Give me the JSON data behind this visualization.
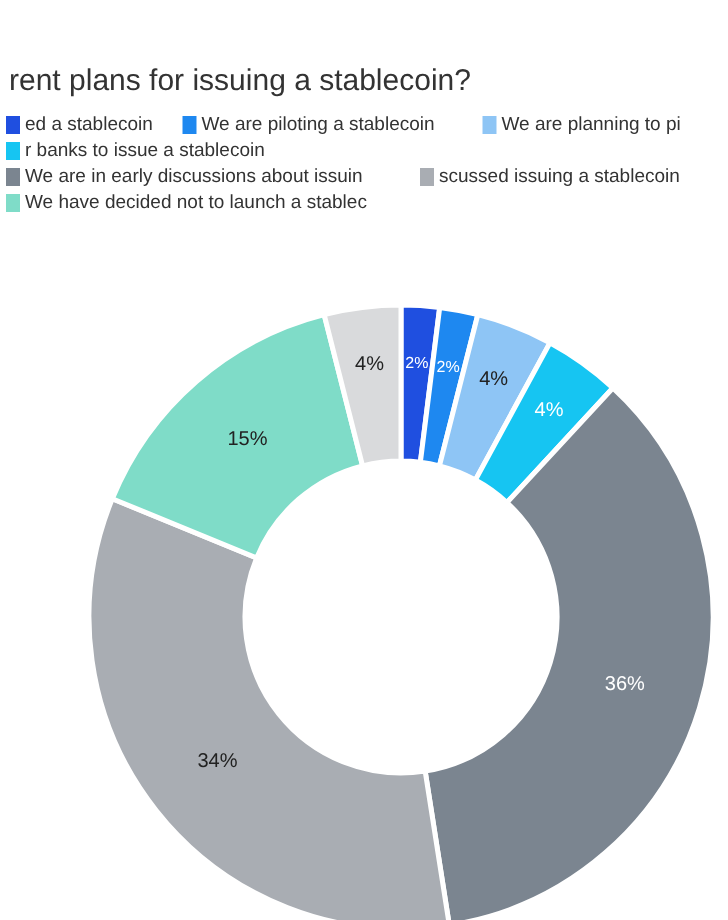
{
  "chart_data": {
    "type": "donut",
    "title": "rent plans for issuing a stablecoin?",
    "categories": [
      "ed a stablecoin",
      "We are piloting a stablecoin",
      "We are planning to pi",
      "r banks to issue a stablecoin",
      "We are in early discussions about issuin",
      "scussed issuing a stablecoin",
      "We have decided not to launch a stablec",
      null
    ],
    "values": [
      2,
      2,
      4,
      4,
      36,
      34,
      15,
      4
    ],
    "colors": [
      "#1f4fe0",
      "#1e88f0",
      "#8ec5f5",
      "#16c5f2",
      "#7b8590",
      "#a9adb3",
      "#7fdcc8",
      "#d9dadc"
    ],
    "value_labels": [
      "2%",
      "2%",
      "4%",
      "4%",
      "36%",
      "34%",
      "15%",
      "4%"
    ],
    "legend": "top"
  }
}
